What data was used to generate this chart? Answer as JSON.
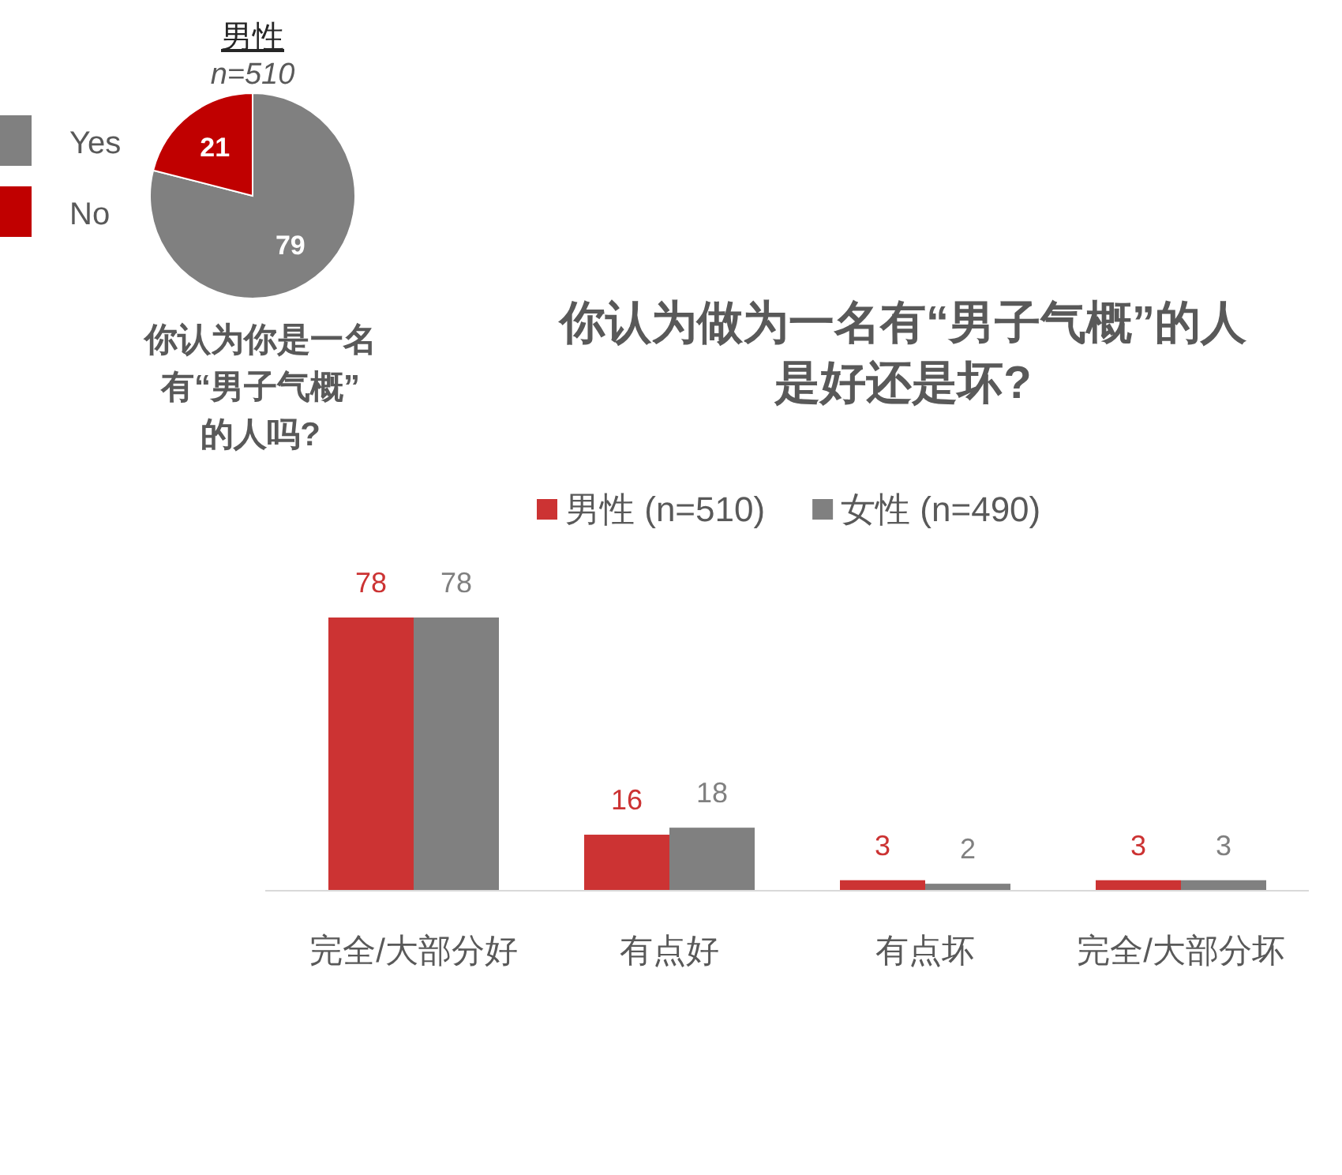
{
  "chart_data": [
    {
      "type": "pie",
      "title": "男性",
      "subtitle": "n=510",
      "categories": [
        "Yes",
        "No"
      ],
      "values": [
        79,
        21
      ],
      "colors": [
        "#808080",
        "#c00000"
      ],
      "data_labels": true,
      "legend": "left",
      "annotations": [
        "你认为你是一名有“男子气概”的人吗?"
      ]
    },
    {
      "type": "bar",
      "title": "你认为做为一名有“男子气概”的人是好还是坏?",
      "categories": [
        "完全/大部分好",
        "有点好",
        "有点坏",
        "完全/大部分坏"
      ],
      "series": [
        {
          "name": "男性 (n=510)",
          "color": "#cc3333",
          "values": [
            78,
            16,
            3,
            3
          ]
        },
        {
          "name": "女性 (n=490)",
          "color": "#808080",
          "values": [
            78,
            18,
            2,
            3
          ]
        }
      ],
      "data_labels": true,
      "legend": "top"
    }
  ]
}
